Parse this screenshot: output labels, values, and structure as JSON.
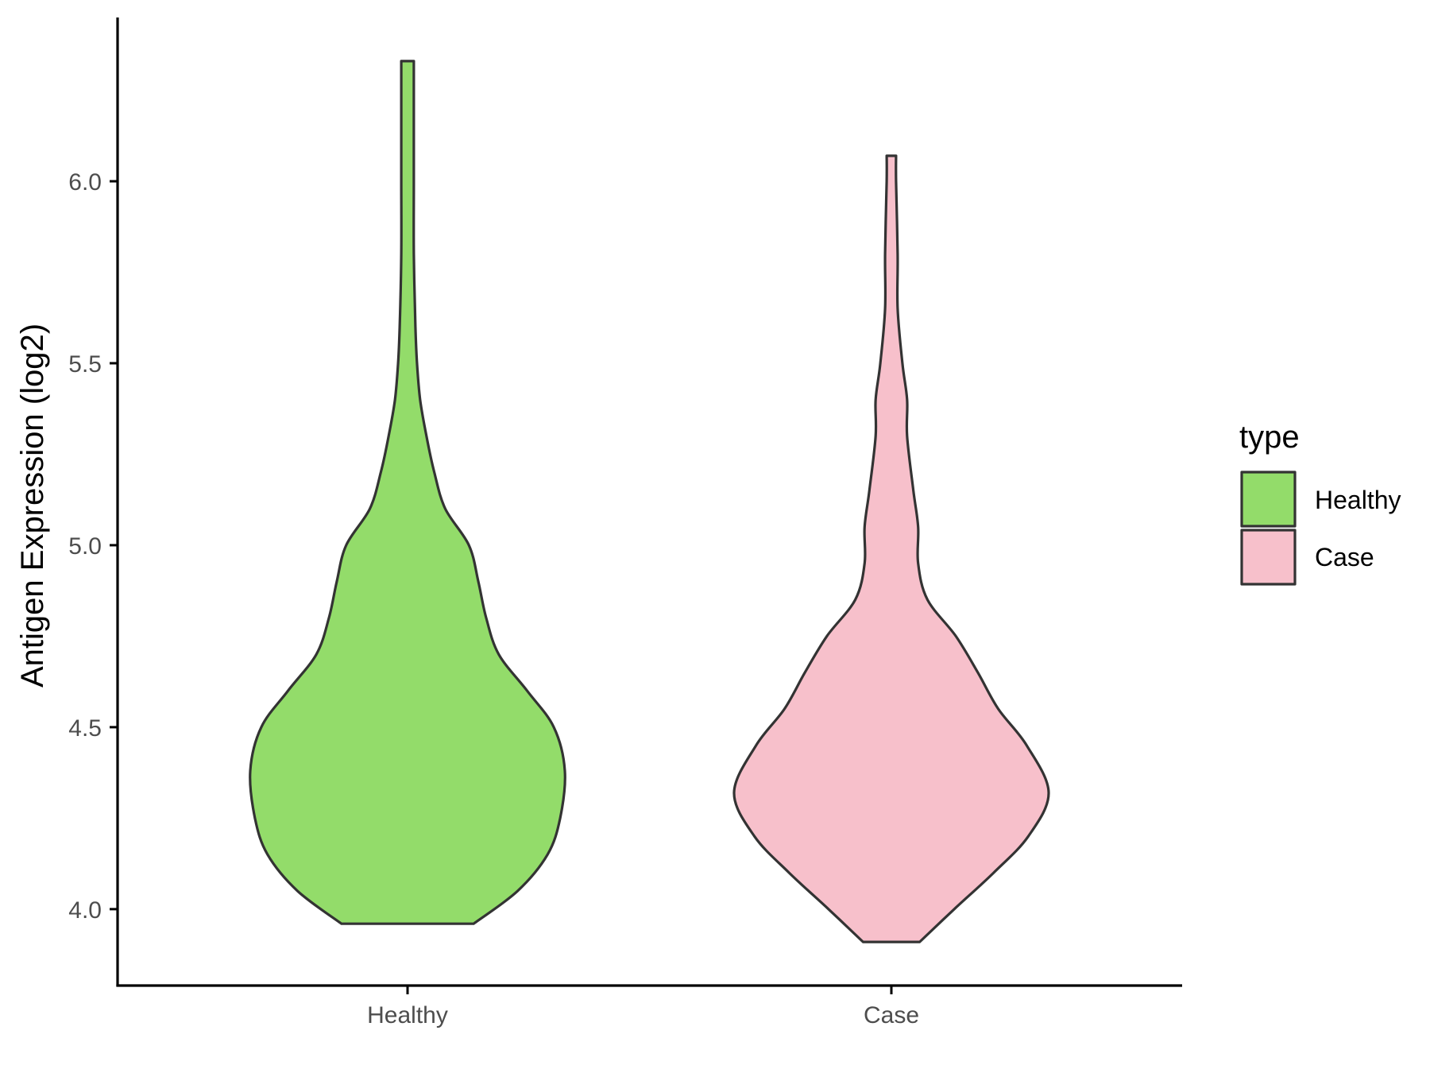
{
  "chart_data": {
    "type": "violin",
    "ylabel": "Antigen Expression (log2)",
    "xlabel": "",
    "categories": [
      "Healthy",
      "Case"
    ],
    "ylim": [
      3.79,
      6.45
    ],
    "yticks": [
      "4.0",
      "4.5",
      "5.0",
      "5.5",
      "6.0"
    ],
    "legend": {
      "title": "type",
      "position": "right",
      "items": [
        {
          "label": "Healthy",
          "color": "#93DC6A"
        },
        {
          "label": "Case",
          "color": "#F7C0CB"
        }
      ]
    },
    "grid": false,
    "series": [
      {
        "category": "Healthy",
        "color": "#93DC6A",
        "min": 3.96,
        "max": 6.33,
        "density_relative_width": [
          [
            3.96,
            0.42
          ],
          [
            4.05,
            0.7
          ],
          [
            4.15,
            0.89
          ],
          [
            4.25,
            0.97
          ],
          [
            4.38,
            1.0
          ],
          [
            4.5,
            0.93
          ],
          [
            4.6,
            0.76
          ],
          [
            4.7,
            0.58
          ],
          [
            4.8,
            0.5
          ],
          [
            4.9,
            0.45
          ],
          [
            5.0,
            0.39
          ],
          [
            5.1,
            0.24
          ],
          [
            5.2,
            0.17
          ],
          [
            5.3,
            0.12
          ],
          [
            5.4,
            0.08
          ],
          [
            5.5,
            0.06
          ],
          [
            5.6,
            0.05
          ],
          [
            5.8,
            0.04
          ],
          [
            6.0,
            0.04
          ],
          [
            6.2,
            0.04
          ],
          [
            6.33,
            0.04
          ]
        ]
      },
      {
        "category": "Case",
        "color": "#F7C0CB",
        "min": 3.91,
        "max": 6.07,
        "density_relative_width": [
          [
            3.91,
            0.18
          ],
          [
            4.0,
            0.4
          ],
          [
            4.1,
            0.65
          ],
          [
            4.2,
            0.87
          ],
          [
            4.32,
            1.0
          ],
          [
            4.45,
            0.86
          ],
          [
            4.55,
            0.68
          ],
          [
            4.65,
            0.55
          ],
          [
            4.75,
            0.41
          ],
          [
            4.85,
            0.23
          ],
          [
            4.95,
            0.17
          ],
          [
            5.05,
            0.17
          ],
          [
            5.15,
            0.14
          ],
          [
            5.3,
            0.1
          ],
          [
            5.4,
            0.1
          ],
          [
            5.5,
            0.07
          ],
          [
            5.65,
            0.04
          ],
          [
            5.8,
            0.04
          ],
          [
            6.0,
            0.03
          ],
          [
            6.07,
            0.03
          ]
        ]
      }
    ]
  }
}
